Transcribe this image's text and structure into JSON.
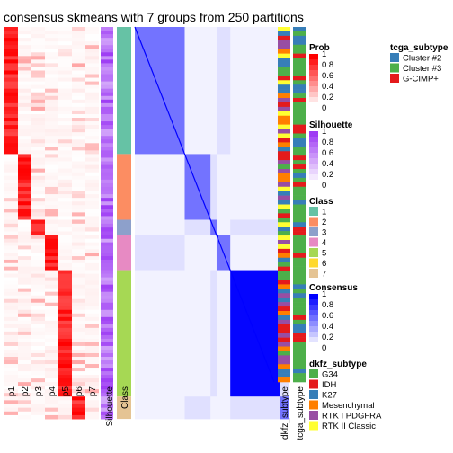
{
  "title": "consensus skmeans with 7 groups from 250 partitions",
  "colors": {
    "prob_high": "#FF0000",
    "prob_low": "#FFFFFF",
    "silhouette_high": "#9E3CF4",
    "consensus_high": "#0000FF",
    "class": [
      "#66C2A5",
      "#FC8D62",
      "#8DA0CB",
      "#E78AC3",
      "#A6D854",
      "#FFD92F",
      "#E5C494"
    ],
    "tcga_subtype": {
      "Cluster #2": "#377EB8",
      "Cluster #3": "#4DAF4A",
      "G-CIMP+": "#E41A1C"
    },
    "dkfz_subtype": {
      "G34": "#4DAF4A",
      "IDH": "#E41A1C",
      "K27": "#377EB8",
      "Mesenchymal": "#FF7F00",
      "RTK I PDGFRA": "#984EA3",
      "RTK II Classic": "#FFFF33"
    }
  },
  "chart_data": {
    "type": "heatmap",
    "title": "consensus skmeans with 7 groups from 250 partitions",
    "columns": [
      "p1",
      "p2",
      "p3",
      "p4",
      "p5",
      "p6",
      "p7",
      "Silhouette",
      "Class",
      "dkfz_subtype",
      "tcga_subtype"
    ],
    "class_blocks": [
      {
        "class": "1",
        "fraction": 0.358,
        "prob_column": "p1"
      },
      {
        "class": "2",
        "fraction": 0.185,
        "prob_column": "p2"
      },
      {
        "class": "3",
        "fraction": 0.044,
        "prob_column": "p3"
      },
      {
        "class": "4",
        "fraction": 0.098,
        "prob_column": "p4"
      },
      {
        "class": "5",
        "fraction": 0.356,
        "prob_column": "p5"
      },
      {
        "class": "7",
        "fraction": 0.063,
        "prob_column": "p6"
      }
    ],
    "legends": [
      {
        "title": "Prob",
        "ticks": [
          "1",
          "0.8",
          "0.6",
          "0.4",
          "0.2",
          "0"
        ],
        "range": [
          0,
          1
        ]
      },
      {
        "title": "Silhouette",
        "ticks": [
          "1",
          "0.8",
          "0.6",
          "0.4",
          "0.2",
          "0"
        ],
        "range": [
          0,
          1
        ]
      },
      {
        "title": "Class",
        "entries": [
          "1",
          "2",
          "3",
          "4",
          "5",
          "6",
          "7"
        ]
      },
      {
        "title": "Consensus",
        "ticks": [
          "1",
          "0.8",
          "0.6",
          "0.4",
          "0.2",
          "0"
        ],
        "range": [
          0,
          1
        ]
      },
      {
        "title": "dkfz_subtype",
        "entries": [
          "G34",
          "IDH",
          "K27",
          "Mesenchymal",
          "RTK I PDGFRA",
          "RTK II Classic"
        ]
      },
      {
        "title": "tcga_subtype",
        "entries": [
          "Cluster #2",
          "Cluster #3",
          "G-CIMP+"
        ]
      }
    ]
  }
}
